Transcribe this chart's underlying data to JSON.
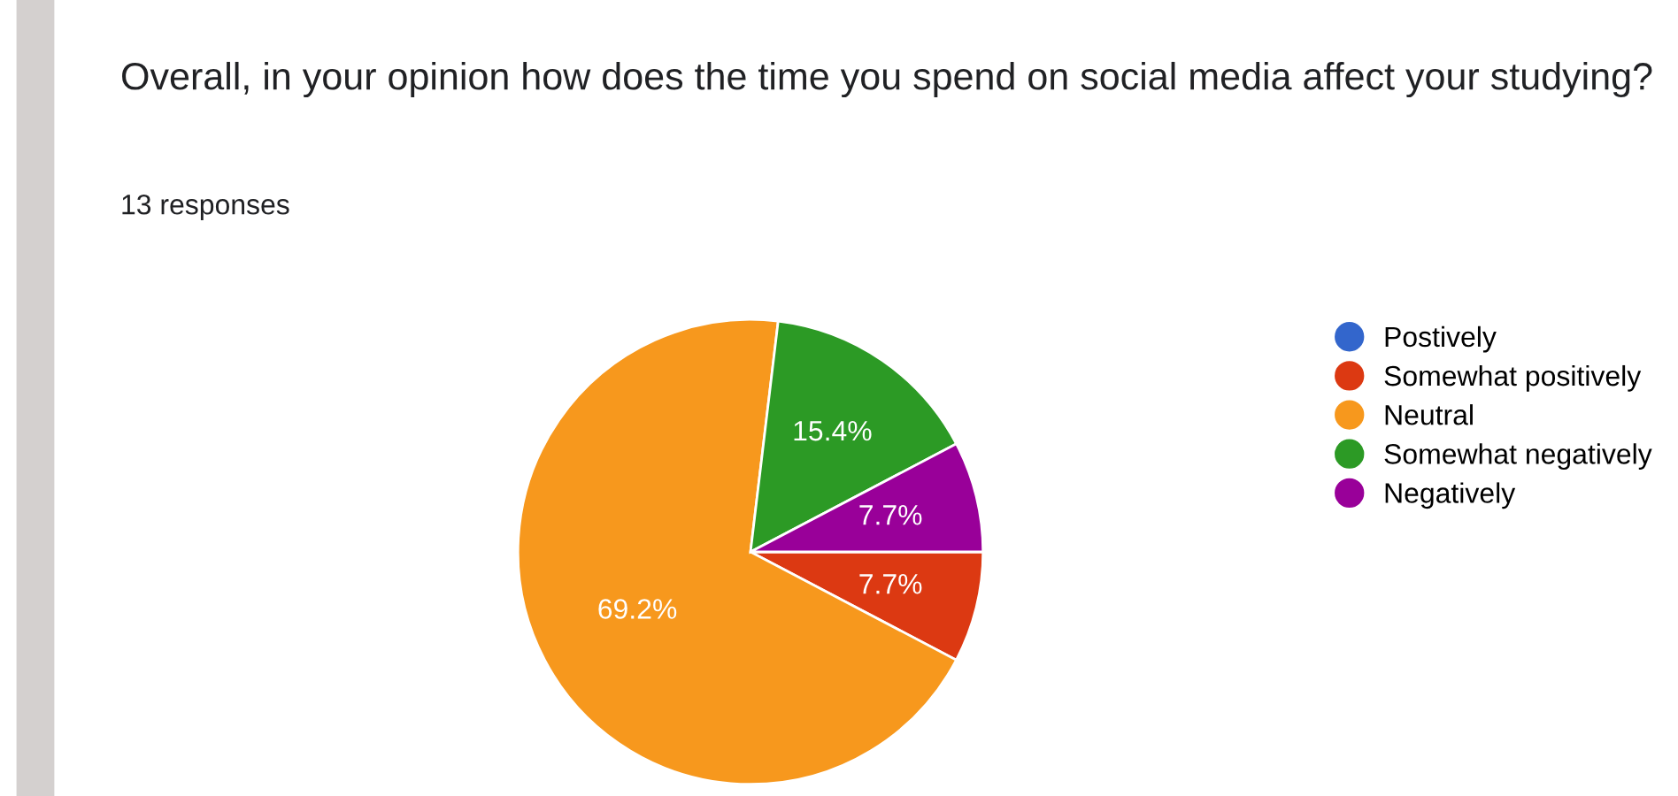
{
  "chart_data": {
    "type": "pie",
    "title": "Overall, in your opinion how does the time you spend on social media affect your studying?",
    "subtitle": "13 responses",
    "categories": [
      "Postively",
      "Somewhat positively",
      "Neutral",
      "Somewhat negatively",
      "Negatively"
    ],
    "values": [
      0,
      7.7,
      69.2,
      15.4,
      7.7
    ],
    "colors": [
      "#3366cc",
      "#dc3912",
      "#f7981d",
      "#2c9a25",
      "#990099"
    ],
    "value_labels": [
      null,
      "7.7%",
      "69.2%",
      "15.4%",
      "7.7%"
    ],
    "legend": "right"
  }
}
